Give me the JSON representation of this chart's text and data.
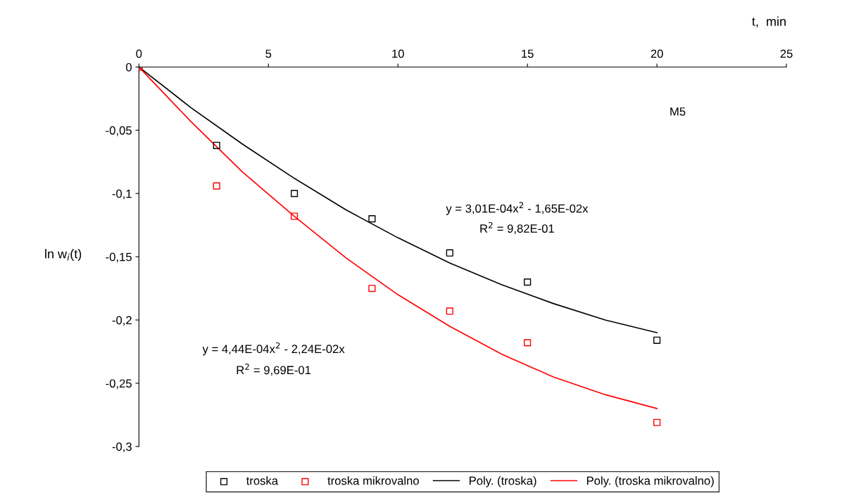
{
  "chart_data": {
    "type": "scatter",
    "xlabel": "t,  min",
    "ylabel": "ln w$_{i}$(t)",
    "xlim": [
      0,
      25
    ],
    "xticks": [
      0,
      5,
      10,
      15,
      20,
      25
    ],
    "ylim": [
      -0.3,
      0
    ],
    "yticks": [
      0,
      {
        "value": -0.05,
        "label": "-0,05"
      },
      {
        "value": -0.1,
        "label": "-0,1"
      },
      {
        "value": -0.15,
        "label": "-0,15"
      },
      {
        "value": -0.2,
        "label": "-0,2"
      },
      {
        "value": -0.25,
        "label": "-0,25"
      },
      {
        "value": -0.3,
        "label": "-0,3"
      }
    ],
    "grid": false,
    "legend": "bottom",
    "series": [
      {
        "name": "troska",
        "marker": "square",
        "color": "#000000",
        "x": [
          0,
          3,
          6,
          9,
          12,
          15,
          20
        ],
        "values": [
          0,
          -0.062,
          -0.1,
          -0.12,
          -0.147,
          -0.17,
          -0.216
        ]
      },
      {
        "name": "troska mikrovalno",
        "marker": "square",
        "color": "#ff0000",
        "x": [
          0,
          3,
          6,
          9,
          12,
          15,
          20
        ],
        "values": [
          0,
          -0.094,
          -0.118,
          -0.175,
          -0.193,
          -0.218,
          -0.281
        ]
      },
      {
        "name": "Poly. (troska)",
        "type": "line",
        "marker": "none",
        "color": "#000000",
        "x": [
          0,
          2,
          4,
          6,
          8,
          10,
          12,
          14,
          16,
          18,
          20
        ],
        "values": [
          0,
          -0.032,
          -0.061,
          -0.088,
          -0.113,
          -0.135,
          -0.155,
          -0.172,
          -0.187,
          -0.2,
          -0.21
        ]
      },
      {
        "name": "Poly. (troska mikrovalno)",
        "type": "line",
        "marker": "none",
        "color": "#ff0000",
        "x": [
          0,
          2,
          4,
          6,
          8,
          10,
          12,
          14,
          16,
          18,
          20
        ],
        "values": [
          0,
          -0.043,
          -0.083,
          -0.118,
          -0.151,
          -0.18,
          -0.205,
          -0.227,
          -0.245,
          -0.259,
          -0.27
        ]
      }
    ],
    "annotations": [
      "y = 3,01E-04x$^{2}$ - 1,65E-02x",
      "R$^{2}$ = 9,82E-01",
      "y = 4,44E-04x$^{2}$ - 2,24E-02x",
      "R$^{2}$ = 9,69E-01",
      "M5"
    ]
  }
}
